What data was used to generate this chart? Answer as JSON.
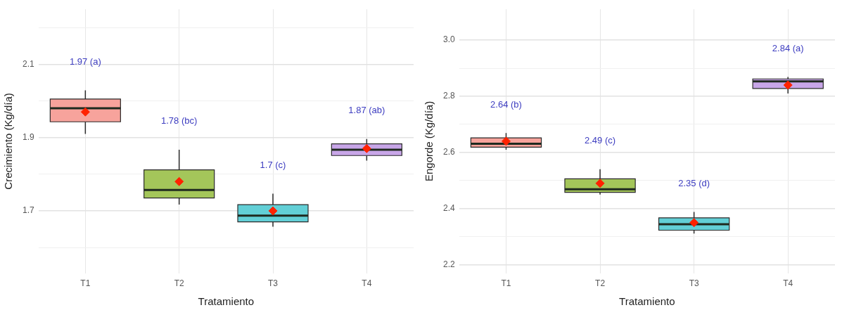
{
  "chart_data": [
    {
      "type": "box",
      "categories": [
        "T1",
        "T2",
        "T3",
        "T4"
      ],
      "xlabel": "Tratamiento",
      "ylabel": "Crecimiento (Kg/día)",
      "boxes": [
        {
          "low": 1.91,
          "q1": 1.943,
          "median": 1.98,
          "q3": 2.005,
          "high": 2.029,
          "mean": 1.97
        },
        {
          "low": 1.717,
          "q1": 1.735,
          "median": 1.757,
          "q3": 1.812,
          "high": 1.867,
          "mean": 1.78
        },
        {
          "low": 1.657,
          "q1": 1.67,
          "median": 1.687,
          "q3": 1.717,
          "high": 1.747,
          "mean": 1.7
        },
        {
          "low": 1.837,
          "q1": 1.851,
          "median": 1.867,
          "q3": 1.883,
          "high": 1.896,
          "mean": 1.87
        }
      ],
      "colors": [
        "#f7a39c",
        "#a4c65a",
        "#62cfd6",
        "#c8a6e8"
      ],
      "annotations": [
        "1.97 (a)",
        "1.78 (bc)",
        "1.7 (c)",
        "1.87 (ab)"
      ],
      "ylim": [
        1.53,
        2.25
      ],
      "yticks": [
        {
          "value": 1.6,
          "label": null
        },
        1.7,
        {
          "value": 1.8,
          "label": null
        },
        1.9,
        {
          "value": 2.0,
          "label": null
        },
        2.1,
        {
          "value": 2.2,
          "label": null
        }
      ],
      "grid": true,
      "legend": false
    },
    {
      "type": "box",
      "categories": [
        "T1",
        "T2",
        "T3",
        "T4"
      ],
      "xlabel": "Tratamiento",
      "ylabel": "Engorde (Kg/día)",
      "boxes": [
        {
          "low": 2.61,
          "q1": 2.619,
          "median": 2.631,
          "q3": 2.652,
          "high": 2.669,
          "mean": 2.64
        },
        {
          "low": 2.45,
          "q1": 2.458,
          "median": 2.469,
          "q3": 2.506,
          "high": 2.54,
          "mean": 2.49
        },
        {
          "low": 2.311,
          "q1": 2.323,
          "median": 2.344,
          "q3": 2.367,
          "high": 2.388,
          "mean": 2.35
        },
        {
          "low": 2.81,
          "q1": 2.828,
          "median": 2.853,
          "q3": 2.862,
          "high": 2.869,
          "mean": 2.84
        }
      ],
      "colors": [
        "#f7a39c",
        "#a4c65a",
        "#62cfd6",
        "#c8a6e8"
      ],
      "annotations": [
        "2.64 (b)",
        "2.49 (c)",
        "2.35 (d)",
        "2.84 (a)"
      ],
      "ylim": [
        2.17,
        3.11
      ],
      "yticks": [
        2.2,
        {
          "value": 2.3,
          "label": null
        },
        2.4,
        {
          "value": 2.5,
          "label": null
        },
        2.6,
        {
          "value": 2.7,
          "label": null
        },
        2.8,
        {
          "value": 2.9,
          "label": null
        },
        "3.0"
      ],
      "grid": true,
      "legend": false
    }
  ]
}
